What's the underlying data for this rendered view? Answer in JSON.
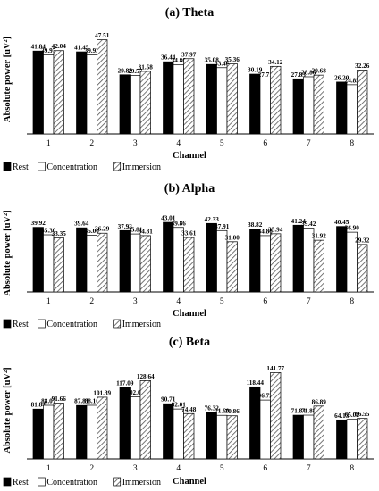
{
  "chart_data": [
    {
      "type": "bar",
      "title": "(a)  Theta",
      "xlabel": "Channel",
      "ylabel": "Absolute power [uV²]",
      "categories": [
        "1",
        "2",
        "3",
        "4",
        "5",
        "6",
        "7",
        "8"
      ],
      "ylim": [
        0,
        55
      ],
      "grid": false,
      "legend_position": "bottom",
      "series": [
        {
          "name": "Rest",
          "color": "#000000",
          "pattern": "solid",
          "values": [
            41.84,
            41.45,
            29.85,
            36.44,
            35.08,
            30.19,
            27.83,
            26.2
          ]
        },
        {
          "name": "Concentration",
          "color": "#ffffff",
          "pattern": "open",
          "values": [
            39.97,
            39.93,
            29.57,
            34.86,
            33.46,
            27.71,
            28.86,
            24.85
          ]
        },
        {
          "name": "Immersion",
          "color": "#bbbbbb",
          "pattern": "hatched",
          "values": [
            42.04,
            47.51,
            31.58,
            37.97,
            35.36,
            34.12,
            29.68,
            32.26
          ]
        }
      ]
    },
    {
      "type": "bar",
      "title": "(b)  Alpha",
      "xlabel": "Channel",
      "ylabel": "Absolute power [uV²]",
      "categories": [
        "1",
        "2",
        "3",
        "4",
        "5",
        "6",
        "7",
        "8"
      ],
      "ylim": [
        0,
        48
      ],
      "grid": false,
      "legend_position": "bottom",
      "series": [
        {
          "name": "Rest",
          "color": "#000000",
          "pattern": "solid",
          "values": [
            39.92,
            39.64,
            37.93,
            43.01,
            42.33,
            38.82,
            41.24,
            40.45
          ]
        },
        {
          "name": "Concentration",
          "color": "#ffffff",
          "pattern": "open",
          "values": [
            35.3,
            35.0,
            35.81,
            39.86,
            37.91,
            34.8,
            39.42,
            36.9
          ]
        },
        {
          "name": "Immersion",
          "color": "#bbbbbb",
          "pattern": "hatched",
          "values": [
            33.35,
            36.29,
            34.81,
            33.61,
            31.0,
            35.94,
            31.92,
            29.32
          ]
        }
      ]
    },
    {
      "type": "bar",
      "title": "(c)  Beta",
      "xlabel": "Channel",
      "ylabel": "Absolute power [uV²]",
      "categories": [
        "1",
        "2",
        "3",
        "4",
        "5",
        "6",
        "7",
        "8"
      ],
      "ylim": [
        0,
        160
      ],
      "grid": false,
      "legend_position": "bottom",
      "series": [
        {
          "name": "Rest",
          "color": "#000000",
          "pattern": "solid",
          "values": [
            81.84,
            87.81,
            117.09,
            90.71,
            76.32,
            118.44,
            71.84,
            64.13
          ]
        },
        {
          "name": "Concentration",
          "color": "#ffffff",
          "pattern": "open",
          "values": [
            88.07,
            88.1,
            102.07,
            82.01,
            71.6,
            96.72,
            71.88,
            65.02
          ]
        },
        {
          "name": "Immersion",
          "color": "#bbbbbb",
          "pattern": "hatched",
          "values": [
            91.66,
            101.39,
            128.64,
            74.48,
            70.86,
            141.77,
            86.89,
            66.55
          ]
        }
      ]
    }
  ]
}
